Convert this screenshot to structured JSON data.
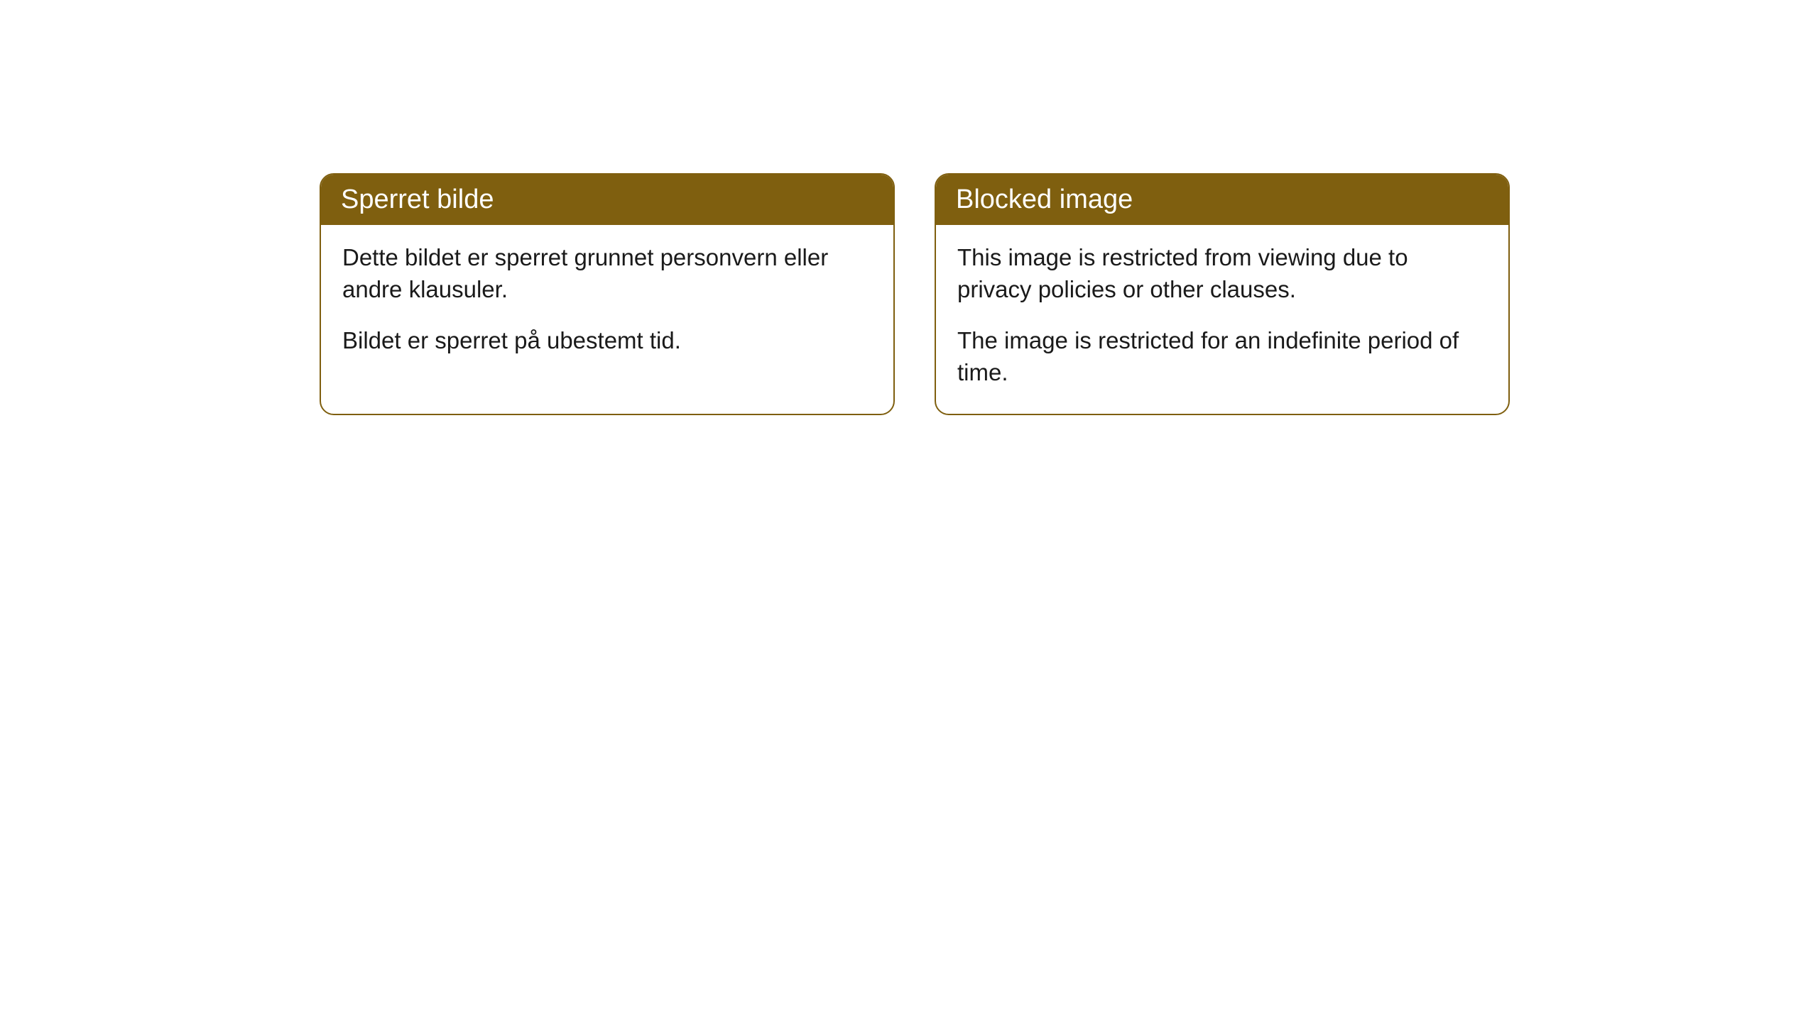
{
  "cards": [
    {
      "title": "Sperret bilde",
      "paragraph1": "Dette bildet er sperret grunnet personvern eller andre klausuler.",
      "paragraph2": "Bildet er sperret på ubestemt tid."
    },
    {
      "title": "Blocked image",
      "paragraph1": "This image is restricted from viewing due to privacy policies or other clauses.",
      "paragraph2": "The image is restricted for an indefinite period of time."
    }
  ],
  "style": {
    "header_background": "#7f5f0f",
    "header_text_color": "#ffffff",
    "body_text_color": "#1a1a1a",
    "border_color": "#7f5f0f",
    "background_color": "#ffffff",
    "border_radius": 20,
    "header_fontsize": 38,
    "body_fontsize": 33
  }
}
